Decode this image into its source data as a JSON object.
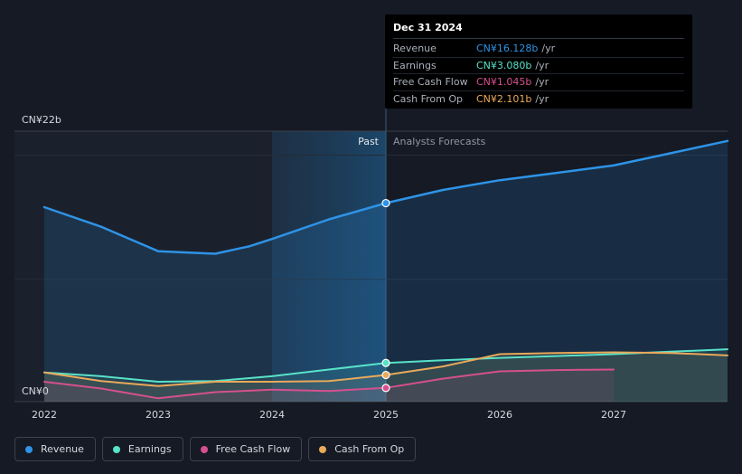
{
  "chart_data": {
    "type": "line",
    "x_unit": "year",
    "x_ticks": [
      "2022",
      "2023",
      "2024",
      "2025",
      "2026",
      "2027"
    ],
    "y_ticks": [
      "CN¥0",
      "CN¥22b"
    ],
    "ylim": [
      0,
      22
    ],
    "y_unit": "CN¥ billions",
    "grid": "horizontal",
    "divider_x": 2025.0,
    "past_label": "Past",
    "forecast_label": "Analysts Forecasts",
    "series": [
      {
        "name": "Revenue",
        "color": "#2e93e6",
        "points": [
          [
            2022.0,
            15.8
          ],
          [
            2022.5,
            14.2
          ],
          [
            2022.8,
            13.0
          ],
          [
            2023.0,
            12.2
          ],
          [
            2023.5,
            12.0
          ],
          [
            2023.8,
            12.6
          ],
          [
            2024.0,
            13.2
          ],
          [
            2024.5,
            14.8
          ],
          [
            2025.0,
            16.128
          ],
          [
            2025.5,
            17.2
          ],
          [
            2026.0,
            18.0
          ],
          [
            2026.5,
            18.6
          ],
          [
            2027.0,
            19.2
          ],
          [
            2027.5,
            20.2
          ],
          [
            2028.0,
            21.2
          ]
        ]
      },
      {
        "name": "Earnings",
        "color": "#58e2c8",
        "points": [
          [
            2022.0,
            2.3
          ],
          [
            2022.5,
            2.0
          ],
          [
            2023.0,
            1.55
          ],
          [
            2023.5,
            1.6
          ],
          [
            2024.0,
            2.0
          ],
          [
            2024.5,
            2.55
          ],
          [
            2025.0,
            3.08
          ],
          [
            2025.5,
            3.3
          ],
          [
            2026.0,
            3.5
          ],
          [
            2026.5,
            3.65
          ],
          [
            2027.0,
            3.8
          ],
          [
            2027.5,
            4.0
          ],
          [
            2028.0,
            4.2
          ]
        ]
      },
      {
        "name": "Free Cash Flow",
        "color": "#d5508e",
        "points": [
          [
            2022.0,
            1.55
          ],
          [
            2022.5,
            1.0
          ],
          [
            2023.0,
            0.2
          ],
          [
            2023.5,
            0.7
          ],
          [
            2024.0,
            0.9
          ],
          [
            2024.5,
            0.8
          ],
          [
            2025.0,
            1.045
          ],
          [
            2025.5,
            1.8
          ],
          [
            2026.0,
            2.4
          ],
          [
            2026.5,
            2.5
          ],
          [
            2027.0,
            2.55
          ]
        ]
      },
      {
        "name": "Cash From Op",
        "color": "#e9a95a",
        "points": [
          [
            2022.0,
            2.3
          ],
          [
            2022.5,
            1.6
          ],
          [
            2023.0,
            1.2
          ],
          [
            2023.5,
            1.55
          ],
          [
            2024.0,
            1.55
          ],
          [
            2024.5,
            1.6
          ],
          [
            2025.0,
            2.101
          ],
          [
            2025.5,
            2.8
          ],
          [
            2026.0,
            3.8
          ],
          [
            2026.5,
            3.9
          ],
          [
            2027.0,
            3.95
          ],
          [
            2027.5,
            3.9
          ],
          [
            2028.0,
            3.7
          ]
        ]
      }
    ]
  },
  "tooltip": {
    "date": "Dec 31 2024",
    "rows": [
      {
        "label": "Revenue",
        "value": "CN¥16.128b",
        "unit": "/yr",
        "color": "#2e93e6"
      },
      {
        "label": "Earnings",
        "value": "CN¥3.080b",
        "unit": "/yr",
        "color": "#58e2c8"
      },
      {
        "label": "Free Cash Flow",
        "value": "CN¥1.045b",
        "unit": "/yr",
        "color": "#d5508e"
      },
      {
        "label": "Cash From Op",
        "value": "CN¥2.101b",
        "unit": "/yr",
        "color": "#e9a95a"
      }
    ]
  },
  "legend": [
    {
      "label": "Revenue",
      "color": "#2e93e6"
    },
    {
      "label": "Earnings",
      "color": "#58e2c8"
    },
    {
      "label": "Free Cash Flow",
      "color": "#d5508e"
    },
    {
      "label": "Cash From Op",
      "color": "#e9a95a"
    }
  ]
}
